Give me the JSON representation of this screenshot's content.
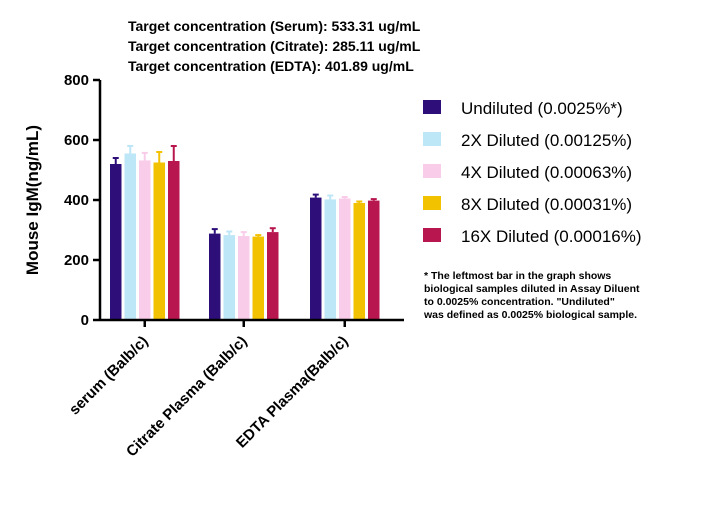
{
  "chart_data": {
    "type": "bar",
    "title_lines": [
      "Target concentration (Serum): 533.31 ug/mL",
      "Target concentration (Citrate): 285.11 ug/mL",
      "Target concentration (EDTA): 401.89 ug/mL"
    ],
    "ylabel": "Mouse IgM(ng/mL)",
    "xlabel": "",
    "ylim": [
      0,
      800
    ],
    "yticks": [
      "0",
      "200",
      "400",
      "600",
      "800"
    ],
    "ytick_values": [
      0,
      200,
      400,
      600,
      800
    ],
    "categories": [
      "serum (Balb/c)",
      "Citrate Plasma (Balb/c)",
      "EDTA Plasma(Balb/c)"
    ],
    "series": [
      {
        "name": "Undiluted (0.0025%*)",
        "color": "#2e0f7a",
        "values": [
          520,
          288,
          408
        ],
        "errors": [
          20,
          15,
          10
        ]
      },
      {
        "name": "2X Diluted (0.00125%)",
        "color": "#bde6f7",
        "values": [
          555,
          283,
          402
        ],
        "errors": [
          25,
          12,
          13
        ]
      },
      {
        "name": "4X Diluted (0.00063%)",
        "color": "#f9cdea",
        "values": [
          532,
          280,
          405
        ],
        "errors": [
          25,
          13,
          5
        ]
      },
      {
        "name": "8X Diluted (0.00031%)",
        "color": "#f2c100",
        "values": [
          525,
          278,
          390
        ],
        "errors": [
          35,
          5,
          5
        ]
      },
      {
        "name": "16X Diluted (0.00016%)",
        "color": "#b8164e",
        "values": [
          530,
          293,
          398
        ],
        "errors": [
          50,
          13,
          5
        ]
      }
    ],
    "legend_position": "right",
    "grid": false,
    "note_lines": [
      "* The leftmost bar in the graph shows",
      "biological samples diluted in Assay Diluent",
      "to 0.0025% concentration. \"Undiluted\"",
      "was defined as 0.0025% biological sample."
    ]
  }
}
